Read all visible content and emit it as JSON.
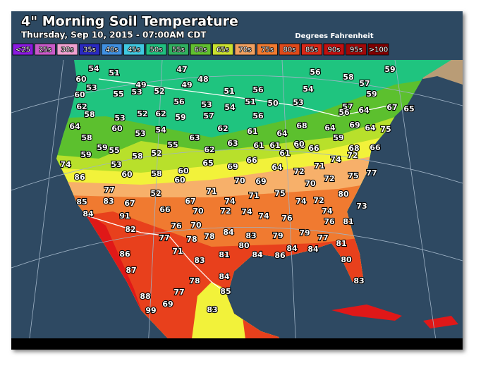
{
  "header": {
    "title": "4\" Morning Soil Temperature",
    "subtitle": "Thursday, Sep 10, 2015 - 07:00AM CDT",
    "units": "Degrees Fahrenheit"
  },
  "legend": [
    "<25",
    "25s",
    "30s",
    "35s",
    "40s",
    "45s",
    "50s",
    "55s",
    "60s",
    "65s",
    "70s",
    "75s",
    "80s",
    "85s",
    "90s",
    "95s",
    ">100"
  ],
  "stations": [
    54,
    51,
    47,
    48,
    56,
    58,
    57,
    59,
    60,
    53,
    49,
    53,
    55,
    52,
    49,
    51,
    56,
    54,
    59,
    60,
    62,
    58,
    56,
    53,
    54,
    51,
    50,
    53,
    57,
    56,
    64,
    67,
    65,
    53,
    52,
    62,
    59,
    57,
    56,
    60,
    53,
    54,
    62,
    61,
    64,
    68,
    64,
    69,
    75,
    64,
    58,
    55,
    63,
    59,
    64,
    68,
    59,
    59,
    55,
    58,
    52,
    62,
    63,
    61,
    61,
    61,
    60,
    66,
    68,
    66,
    74,
    53,
    60,
    58,
    60,
    65,
    69,
    66,
    64,
    72,
    71,
    74,
    72,
    77,
    86,
    60,
    70,
    69,
    70,
    72,
    75,
    77,
    71,
    71,
    75,
    80,
    52,
    85,
    83,
    67,
    74,
    74,
    72,
    76,
    73,
    91,
    66,
    67,
    70,
    72,
    74,
    74,
    76,
    74,
    84,
    82,
    76,
    70,
    78,
    84,
    83,
    79,
    79,
    77,
    81,
    77,
    78,
    80,
    84,
    86,
    84,
    84,
    81,
    86,
    71,
    83,
    81,
    80,
    87,
    84,
    78,
    85,
    83,
    88,
    77,
    99,
    69,
    83
  ]
}
